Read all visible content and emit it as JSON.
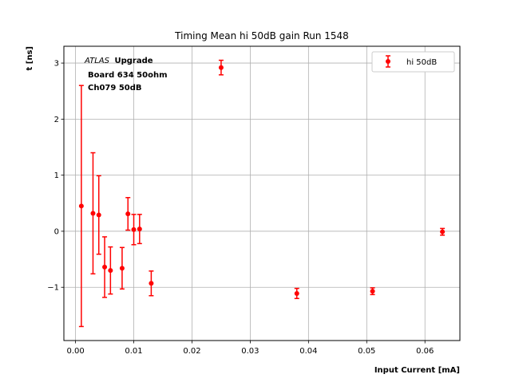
{
  "chart_data": {
    "type": "scatter",
    "title": "Timing Mean hi 50dB gain Run 1548",
    "xlabel": "Input Current [mA]",
    "ylabel": "t [ns]",
    "xlim": [
      -0.002,
      0.066
    ],
    "ylim": [
      -1.95,
      3.3
    ],
    "grid": true,
    "x_ticks": [
      0.0,
      0.01,
      0.02,
      0.03,
      0.04,
      0.05,
      0.06
    ],
    "x_tick_labels": [
      "0.00",
      "0.01",
      "0.02",
      "0.03",
      "0.04",
      "0.05",
      "0.06"
    ],
    "y_ticks": [
      -1,
      0,
      1,
      2,
      3
    ],
    "y_tick_labels": [
      "−1",
      "0",
      "1",
      "2",
      "3"
    ],
    "legend_position": "top-right",
    "annotation": {
      "atlas": "ATLAS",
      "upgrade": "Upgrade",
      "line2": "Board 634 50ohm",
      "line3": "Ch079 50dB"
    },
    "series": [
      {
        "name": "hi 50dB",
        "color": "#ff0000",
        "marker": "circle",
        "points": [
          {
            "x": 0.001,
            "y": 0.45,
            "err": 2.15
          },
          {
            "x": 0.003,
            "y": 0.32,
            "err": 1.08
          },
          {
            "x": 0.004,
            "y": 0.29,
            "err": 0.7
          },
          {
            "x": 0.005,
            "y": -0.64,
            "err": 0.54
          },
          {
            "x": 0.006,
            "y": -0.7,
            "err": 0.42
          },
          {
            "x": 0.008,
            "y": -0.66,
            "err": 0.37
          },
          {
            "x": 0.009,
            "y": 0.31,
            "err": 0.29
          },
          {
            "x": 0.01,
            "y": 0.03,
            "err": 0.27
          },
          {
            "x": 0.011,
            "y": 0.04,
            "err": 0.26
          },
          {
            "x": 0.013,
            "y": -0.93,
            "err": 0.22
          },
          {
            "x": 0.025,
            "y": 2.92,
            "err": 0.13
          },
          {
            "x": 0.038,
            "y": -1.11,
            "err": 0.09
          },
          {
            "x": 0.051,
            "y": -1.07,
            "err": 0.06
          },
          {
            "x": 0.063,
            "y": -0.01,
            "err": 0.06
          }
        ]
      }
    ]
  }
}
